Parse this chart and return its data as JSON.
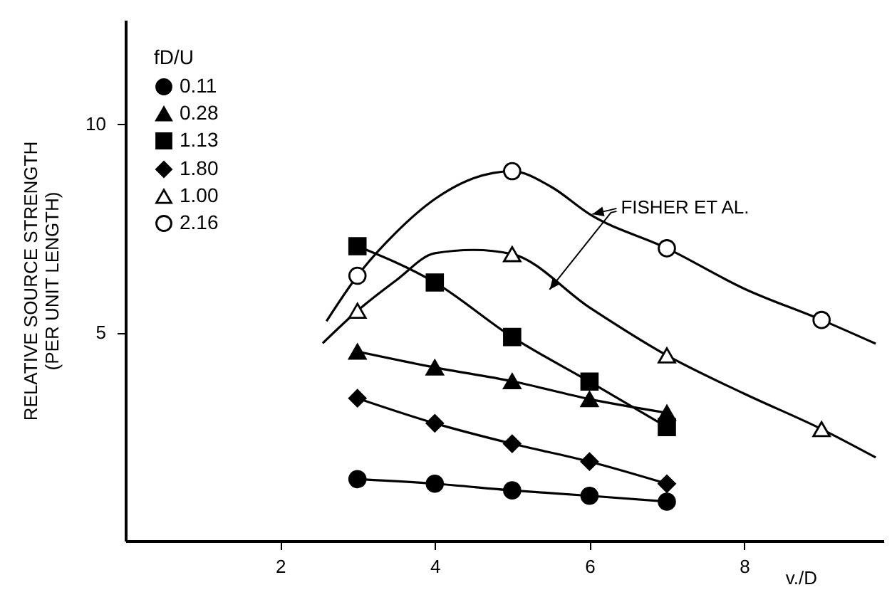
{
  "chart_data": {
    "type": "line",
    "xlabel": "v./D",
    "ylabel": "RELATIVE SOURCE STRENGTH\n(PER UNIT LENGTH)",
    "legend_title": "fD/U",
    "legend": "top left",
    "grid": false,
    "xlim": [
      0,
      9.8
    ],
    "ylim": [
      0,
      12.5
    ],
    "xticks": [
      2,
      4,
      6,
      8
    ],
    "yticks": [
      5,
      10
    ],
    "x": [
      3,
      4,
      5,
      6,
      7
    ],
    "annotations": [
      {
        "text": "FISHER ET AL.",
        "x": 6,
        "y": 7.84
      }
    ],
    "series": [
      {
        "name": "0.11",
        "marker": "circle",
        "color": "#000000",
        "values": [
          1.48,
          1.37,
          1.21,
          1.08,
          0.94
        ]
      },
      {
        "name": "0.28",
        "marker": "triangle",
        "color": "#000000",
        "values": [
          4.54,
          4.16,
          3.83,
          3.4,
          3.07
        ]
      },
      {
        "name": "1.13",
        "marker": "square",
        "color": "#000000",
        "values": [
          7.07,
          6.2,
          4.89,
          3.82,
          2.73
        ]
      },
      {
        "name": "1.80",
        "marker": "diamond",
        "color": "#000000",
        "values": [
          3.42,
          2.82,
          2.33,
          1.9,
          1.37
        ]
      },
      {
        "name": "1.00",
        "type": "scatter",
        "marker": "triangle",
        "color": "#000000",
        "x": [
          3,
          5,
          7,
          9
        ],
        "values": [
          5.52,
          6.88,
          4.45,
          2.68
        ]
      },
      {
        "name": "2.16",
        "type": "scatter",
        "marker": "circle",
        "color": "#000000",
        "x": [
          3,
          5,
          7,
          9
        ],
        "values": [
          6.36,
          8.87,
          7.02,
          5.3
        ]
      },
      {
        "marker": "none",
        "color": "#000000",
        "x": [
          2.55,
          3,
          3.5,
          4,
          4.5,
          5,
          6,
          7,
          8,
          9,
          9.7
        ],
        "values": [
          4.74,
          5.52,
          6.25,
          6.9,
          6.98,
          6.88,
          5.6,
          4.45,
          3.53,
          2.68,
          2.0
        ]
      },
      {
        "marker": "none",
        "color": "#000000",
        "x": [
          2.6,
          3,
          3.5,
          4,
          4.5,
          5,
          5.5,
          6,
          7,
          8,
          9,
          9.7
        ],
        "values": [
          5.27,
          6.36,
          7.4,
          8.2,
          8.7,
          8.87,
          8.5,
          7.84,
          7.02,
          6.05,
          5.3,
          4.73
        ]
      }
    ]
  }
}
